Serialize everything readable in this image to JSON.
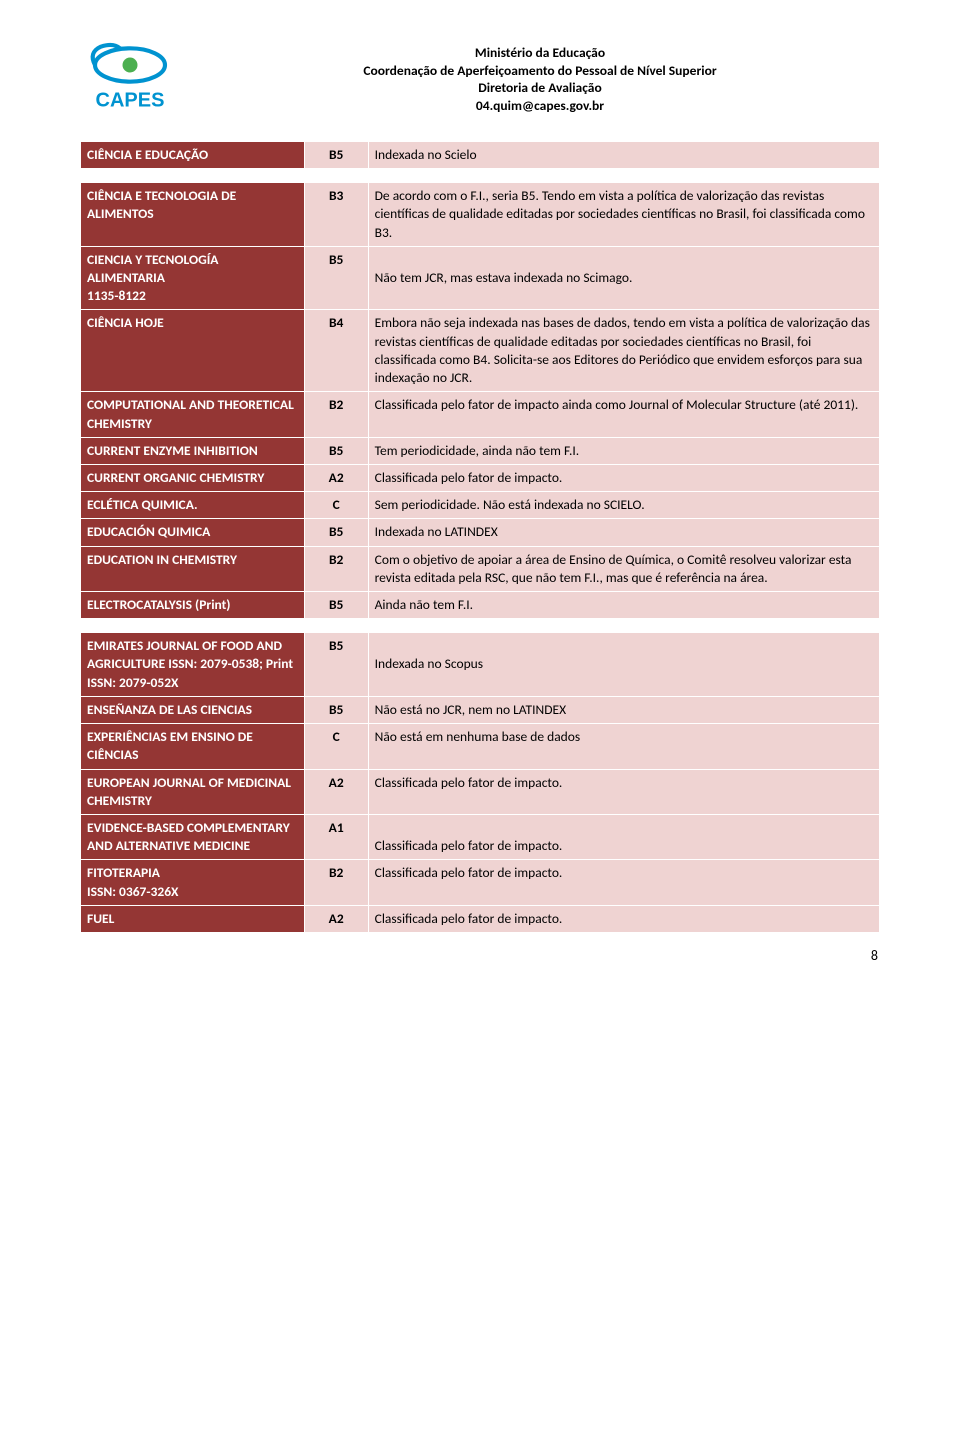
{
  "header": {
    "line1": "Ministério da Educação",
    "line2": "Coordenação de Aperfeiçoamento do Pessoal de Nível Superior",
    "line3": "Diretoria de Avaliação",
    "line4": "04.quim@capes.gov.br"
  },
  "logo": {
    "text": "CAPES",
    "color_blue": "#0093d0",
    "color_green": "#4caf50"
  },
  "colors": {
    "name_bg": "#943634",
    "name_fg": "#ffffff",
    "cell_bg": "#efd3d2",
    "cell_fg": "#000000",
    "border": "#ffffff"
  },
  "rows": [
    {
      "name": "CIÊNCIA E EDUCAÇÃO",
      "rating": "B5",
      "comment": "Indexada no Scielo"
    },
    {
      "spacer": true
    },
    {
      "name": "CIÊNCIA E TECNOLOGIA DE ALIMENTOS",
      "rating": "B3",
      "comment": "De acordo com o F.I., seria B5. Tendo em vista a política de valorização das revistas científicas de qualidade editadas por sociedades científicas no Brasil, foi classificada como B3."
    },
    {
      "name": "CIENCIA Y TECNOLOGÍA ALIMENTARIA\n1135-8122",
      "rating": "B5",
      "comment": "\nNão tem JCR, mas estava indexada no Scimago."
    },
    {
      "name": "CIÊNCIA HOJE",
      "rating": "B4",
      "comment": "Embora não seja indexada nas bases de dados, tendo em vista a política de valorização das revistas científicas de qualidade editadas por sociedades científicas no Brasil, foi classificada como B4. Solicita-se aos Editores do Periódico que envidem esforços para sua indexação no JCR."
    },
    {
      "name": "COMPUTATIONAL AND THEORETICAL CHEMISTRY",
      "rating": "B2",
      "comment": "Classificada pelo fator de impacto ainda como Journal of Molecular Structure (até 2011)."
    },
    {
      "name": "CURRENT ENZYME INHIBITION",
      "rating": "B5",
      "comment": "Tem periodicidade, ainda não tem F.I."
    },
    {
      "name": "CURRENT ORGANIC CHEMISTRY",
      "rating": "A2",
      "comment": "Classificada pelo fator de impacto."
    },
    {
      "name": "ECLÉTICA QUIMICA.",
      "rating": "C",
      "comment": "Sem periodicidade. Não está indexada no SCIELO."
    },
    {
      "name": "EDUCACIÓN QUIMICA",
      "rating": "B5",
      "comment": "Indexada no LATINDEX"
    },
    {
      "name": "EDUCATION IN CHEMISTRY",
      "rating": "B2",
      "comment": "Com o objetivo de apoiar a área de Ensino de Química, o Comitê resolveu valorizar esta revista editada pela RSC, que não tem F.I., mas que é referência na área."
    },
    {
      "name": "ELECTROCATALYSIS (Print)",
      "rating": "B5",
      "comment": "Ainda não tem F.I."
    },
    {
      "spacer": true
    },
    {
      "name": "EMIRATES JOURNAL OF FOOD AND AGRICULTURE ISSN: 2079-0538; Print ISSN: 2079-052X",
      "rating": "B5",
      "comment": "\nIndexada no Scopus"
    },
    {
      "name": "ENSEÑANZA DE LAS CIENCIAS",
      "rating": "B5",
      "comment": "Não está no JCR, nem no LATINDEX"
    },
    {
      "name": "EXPERIÊNCIAS EM ENSINO DE CIÊNCIAS",
      "rating": "C",
      "comment": "Não está em nenhuma base de dados"
    },
    {
      "name": "EUROPEAN JOURNAL OF MEDICINAL CHEMISTRY",
      "rating": "A2",
      "comment": "Classificada pelo fator de impacto."
    },
    {
      "name": "EVIDENCE-BASED COMPLEMENTARY AND ALTERNATIVE MEDICINE",
      "rating": "A1",
      "comment": "\nClassificada pelo fator de impacto."
    },
    {
      "name": "FITOTERAPIA\nISSN: 0367-326X",
      "rating": "B2",
      "comment": "Classificada pelo fator de impacto."
    },
    {
      "name": "FUEL",
      "rating": "A2",
      "comment": "Classificada pelo fator de impacto."
    }
  ],
  "page_number": "8"
}
